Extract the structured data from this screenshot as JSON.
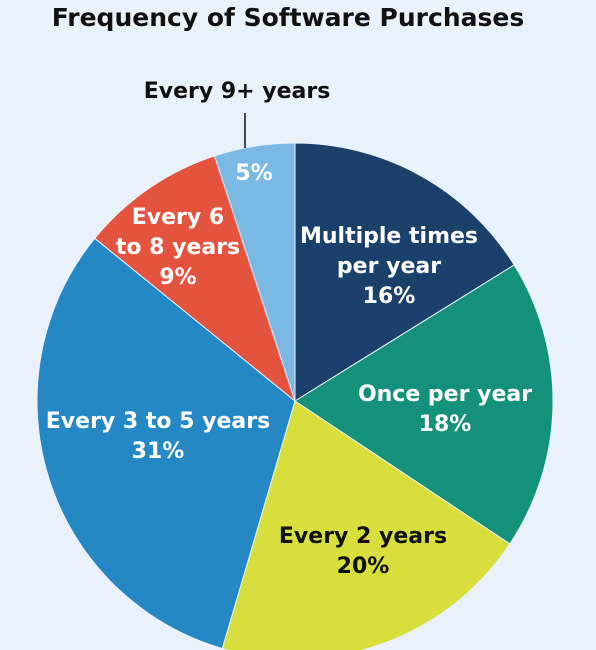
{
  "chart_data": {
    "type": "pie",
    "title": "Frequency of Software Purchases",
    "categories": [
      "Multiple times\nper year",
      "Once per year",
      "Every 2 years",
      "Every 3 to 5 years",
      "Every 6\nto 8 years",
      "Every 9+ years"
    ],
    "values": [
      16,
      18,
      20,
      31,
      9,
      5
    ],
    "value_labels": [
      "16%",
      "18%",
      "20%",
      "31%",
      "9%",
      "5%"
    ],
    "colors": [
      "#1b406b",
      "#14917a",
      "#d8de3b",
      "#2488c4",
      "#e4533d",
      "#7ab9e4"
    ]
  }
}
